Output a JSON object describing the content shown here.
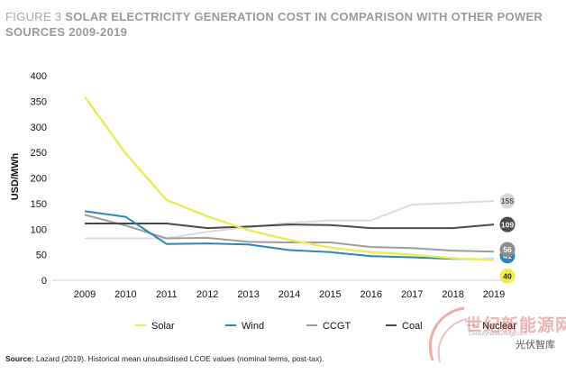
{
  "figure_label": "FIGURE 3",
  "title_rest": "SOLAR ELECTRICITY GENERATION COST IN COMPARISON WITH OTHER POWER",
  "title_line2": "SOURCES 2009-2019",
  "source_bold": "Source:",
  "source_text": "Lazard (2019). Historical mean unsubsidised LCOE values (nominal terms, post-tax).",
  "watermark_site": "世纪新能源网",
  "watermark_url": "CenturyNewEnergy.com",
  "watermark_cn": "光伏智库",
  "chart_data": {
    "type": "line",
    "ylabel": "USD/MWh",
    "xlabel": "",
    "ylim": [
      0,
      400
    ],
    "yticks": [
      0,
      50,
      100,
      150,
      200,
      250,
      300,
      350,
      400
    ],
    "categories": [
      "2009",
      "2010",
      "2011",
      "2012",
      "2013",
      "2014",
      "2015",
      "2016",
      "2017",
      "2018",
      "2019"
    ],
    "grid": false,
    "legend_position": "bottom",
    "series": [
      {
        "name": "Solar",
        "color": "#e8ec5a",
        "values": [
          359,
          248,
          157,
          125,
          98,
          79,
          64,
          55,
          50,
          43,
          40
        ],
        "end_label": "40"
      },
      {
        "name": "Wind",
        "color": "#2b87b8",
        "values": [
          135,
          124,
          71,
          72,
          70,
          59,
          55,
          47,
          45,
          42,
          41
        ],
        "end_label": "41"
      },
      {
        "name": "CCGT",
        "color": "#9e9e9e",
        "values": [
          128,
          107,
          82,
          83,
          75,
          74,
          74,
          65,
          63,
          58,
          56
        ],
        "end_label": "56"
      },
      {
        "name": "Coal",
        "color": "#4a4a4a",
        "values": [
          111,
          111,
          111,
          102,
          105,
          109,
          108,
          102,
          102,
          102,
          109
        ],
        "end_label": "109"
      },
      {
        "name": "Nuclear",
        "color": "#dcdcdc",
        "values": [
          82,
          82,
          82,
          95,
          104,
          112,
          117,
          117,
          148,
          151,
          155
        ],
        "end_label": "155"
      }
    ]
  }
}
